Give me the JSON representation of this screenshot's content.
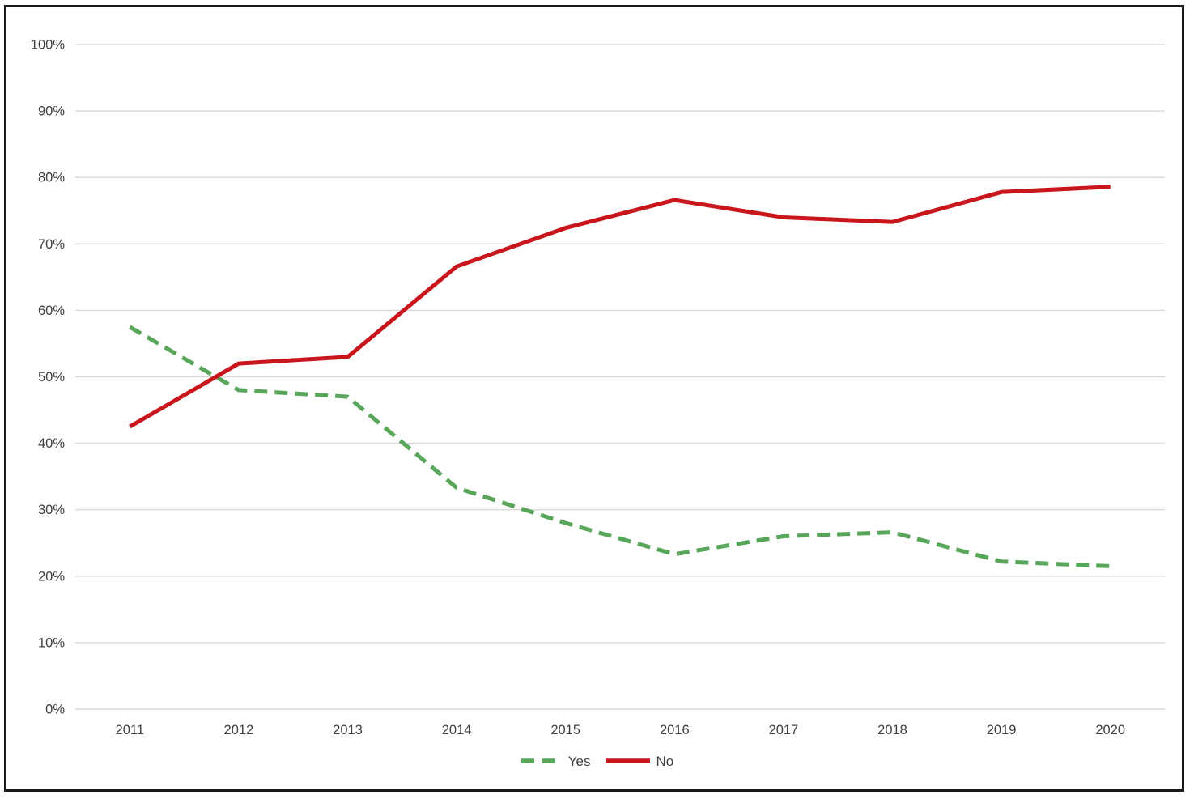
{
  "chart_data": {
    "type": "line",
    "title": "",
    "xlabel": "",
    "ylabel": "",
    "ylim": [
      0,
      100
    ],
    "grid": true,
    "legend_position": "bottom",
    "categories": [
      "2011",
      "2012",
      "2013",
      "2014",
      "2015",
      "2016",
      "2017",
      "2018",
      "2019",
      "2020"
    ],
    "series": [
      {
        "name": "Yes",
        "style": "dashed",
        "color": "#57A65A",
        "values": [
          57.5,
          48.0,
          47.0,
          33.3,
          28.0,
          23.3,
          26.0,
          26.6,
          22.2,
          21.5
        ]
      },
      {
        "name": "No",
        "style": "solid",
        "color": "#C9161C",
        "values": [
          42.5,
          52.0,
          53.0,
          66.6,
          72.4,
          76.6,
          74.0,
          73.3,
          77.8,
          78.6
        ]
      }
    ],
    "y_ticks": [
      {
        "value": 0,
        "label": "0%"
      },
      {
        "value": 10,
        "label": "10%"
      },
      {
        "value": 20,
        "label": "20%"
      },
      {
        "value": 30,
        "label": "30%"
      },
      {
        "value": 40,
        "label": "40%"
      },
      {
        "value": 50,
        "label": "50%"
      },
      {
        "value": 60,
        "label": "60%"
      },
      {
        "value": 70,
        "label": "70%"
      },
      {
        "value": 80,
        "label": "80%"
      },
      {
        "value": 90,
        "label": "90%"
      },
      {
        "value": 100,
        "label": "100%"
      }
    ],
    "colors": {
      "gridline": "#D9D9D9",
      "tick_text": "#404040",
      "frame_border": "#1A1A1A",
      "background": "#FFFFFF"
    }
  }
}
